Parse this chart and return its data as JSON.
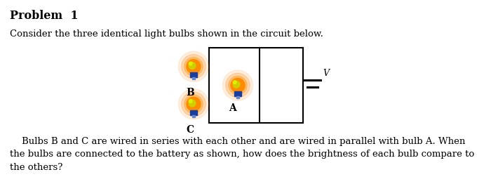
{
  "title": "Problem  1",
  "subtitle": "Consider the three identical light bulbs shown in the circuit below.",
  "paragraph": "    Bulbs B and C are wired in series with each other and are wired in parallel with bulb A. When\nthe bulbs are connected to the battery as shown, how does the brightness of each bulb compare to\nthe others?",
  "bg_color": "#ffffff",
  "text_color": "#000000",
  "title_fontsize": 11.5,
  "body_fontsize": 9.5,
  "label_B": "B",
  "label_A": "A",
  "label_C": "C",
  "label_V": "V"
}
